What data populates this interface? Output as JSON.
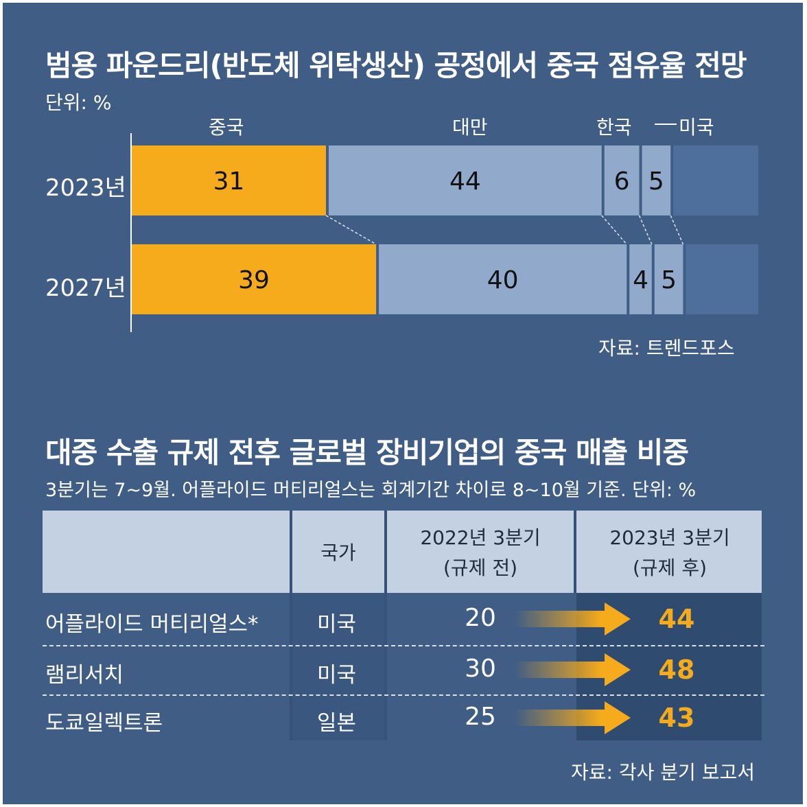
{
  "chart1": {
    "title": "범용 파운드리(반도체 위탁생산) 공정에서 중국 점유율 전망",
    "unit": "단위: %",
    "source": "자료: 트렌드포스"
  },
  "chart2": {
    "title": "대중 수출 규제 전후 글로벌 장비기업의 중국 매출 비중",
    "note": "3분기는 7~9월. 어플라이드 머티리얼스는 회계기간 차이로 8~10월 기준. 단위: %",
    "source": "자료: 각사 분기 보고서",
    "headers": {
      "country": "국가",
      "before_line1": "2022년 3분기",
      "before_line2": "(규제 전)",
      "after_line1": "2023년 3분기",
      "after_line2": "(규제 후)"
    }
  },
  "chart_data": [
    {
      "type": "bar",
      "orientation": "horizontal",
      "stacked": true,
      "title": "범용 파운드리(반도체 위탁생산) 공정에서 중국 점유율 전망",
      "unit": "단위: %",
      "categories": [
        "2023년",
        "2027년"
      ],
      "series": [
        {
          "name": "중국",
          "values": [
            31,
            39
          ],
          "color": "#f6ab1c"
        },
        {
          "name": "대만",
          "values": [
            44,
            40
          ],
          "color": "#91aacb"
        },
        {
          "name": "한국",
          "values": [
            6,
            4
          ],
          "color": "#91aacb"
        },
        {
          "name": "미국",
          "values": [
            5,
            5
          ],
          "color": "#91aacb"
        }
      ],
      "remainder_color": "#4e6e9c",
      "source": "자료: 트렌드포스"
    },
    {
      "type": "table",
      "title": "대중 수출 규제 전후 글로벌 장비기업의 중국 매출 비중",
      "columns": [
        "",
        "국가",
        "2022년 3분기 (규제 전)",
        "2023년 3분기 (규제 후)"
      ],
      "rows": [
        {
          "company": "어플라이드 머티리얼스*",
          "country": "미국",
          "before": 20,
          "after": 44
        },
        {
          "company": "램리서치",
          "country": "미국",
          "before": 30,
          "after": 48
        },
        {
          "company": "도쿄일렉트론",
          "country": "일본",
          "before": 25,
          "after": 43
        }
      ],
      "accent": "#f6ab1c"
    }
  ]
}
